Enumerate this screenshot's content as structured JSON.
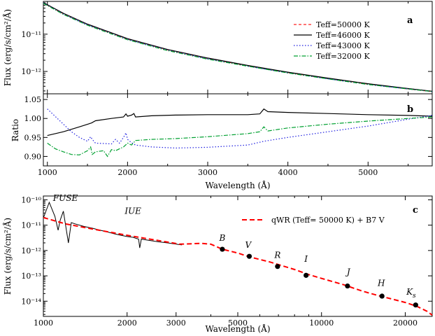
{
  "chart_data": [
    {
      "panel": "a",
      "type": "line",
      "xlabel": "",
      "ylabel": "Flux (erg/s/cm²/Å)",
      "xlim": [
        950,
        5800
      ],
      "ylim_log10": [
        -12.6,
        -10.12
      ],
      "y_scale": "log",
      "yticks": [
        {
          "value": -11,
          "label": "10⁻¹¹"
        },
        {
          "value": -12,
          "label": "10⁻¹²"
        }
      ],
      "legend": {
        "placement": "top-right",
        "entries": [
          "Teff=50000 K",
          "Teff=46000 K",
          "Teff=43000 K",
          "Teff=32000 K"
        ]
      },
      "series": [
        {
          "name": "Teff=50000 K",
          "color": "#ff2020",
          "dash": "4,3",
          "x": [
            950,
            1200,
            1500,
            2000,
            2500,
            3000,
            3500,
            4000,
            4500,
            5000,
            5500,
            5800
          ],
          "log10y": [
            -10.16,
            -10.45,
            -10.74,
            -11.13,
            -11.42,
            -11.65,
            -11.85,
            -12.03,
            -12.19,
            -12.34,
            -12.47,
            -12.54
          ]
        },
        {
          "name": "Teff=46000 K",
          "color": "#000000",
          "dash": "",
          "x": [
            950,
            1200,
            1500,
            2000,
            2500,
            3000,
            3500,
            4000,
            4500,
            5000,
            5500,
            5800
          ],
          "log10y": [
            -10.15,
            -10.44,
            -10.73,
            -11.12,
            -11.41,
            -11.64,
            -11.84,
            -12.02,
            -12.18,
            -12.33,
            -12.46,
            -12.53
          ]
        },
        {
          "name": "Teff=43000 K",
          "color": "#2020e0",
          "dash": "1.5,2.5",
          "x": [
            950,
            1200,
            1500,
            2000,
            2500,
            3000,
            3500,
            4000,
            4500,
            5000,
            5500,
            5800
          ],
          "log10y": [
            -10.16,
            -10.46,
            -10.75,
            -11.14,
            -11.43,
            -11.66,
            -11.86,
            -12.04,
            -12.2,
            -12.35,
            -12.47,
            -12.54
          ]
        },
        {
          "name": "Teff=32000 K",
          "color": "#00a030",
          "dash": "6,2,1.5,2",
          "x": [
            950,
            1200,
            1500,
            2000,
            2500,
            3000,
            3500,
            4000,
            4500,
            5000,
            5500,
            5800
          ],
          "log10y": [
            -10.17,
            -10.47,
            -10.76,
            -11.15,
            -11.44,
            -11.67,
            -11.86,
            -12.04,
            -12.2,
            -12.35,
            -12.47,
            -12.54
          ]
        }
      ],
      "annotation": "a"
    },
    {
      "panel": "b",
      "type": "line",
      "xlabel": "Wavelength (Å)",
      "ylabel": "Ratio",
      "xlim": [
        950,
        5800
      ],
      "ylim": [
        0.875,
        1.065
      ],
      "xticks": [
        1000,
        2000,
        3000,
        4000,
        5000
      ],
      "yticks": [
        {
          "value": 0.9,
          "label": "0.90"
        },
        {
          "value": 0.95,
          "label": "0.95"
        },
        {
          "value": 1.0,
          "label": "1.00"
        },
        {
          "value": 1.05,
          "label": "1.05"
        }
      ],
      "series": [
        {
          "name": "",
          "color": "#000000",
          "dash": "",
          "x": [
            1000,
            1200,
            1400,
            1550,
            1600,
            1800,
            1950,
            1980,
            2000,
            2050,
            2080,
            2100,
            2300,
            2600,
            3000,
            3500,
            3650,
            3700,
            3750,
            4000,
            4500,
            5000,
            5500,
            5800
          ],
          "y": [
            0.955,
            0.965,
            0.978,
            0.988,
            0.994,
            1.0,
            1.004,
            1.012,
            1.006,
            1.009,
            1.013,
            1.004,
            1.007,
            1.009,
            1.01,
            1.01,
            1.012,
            1.025,
            1.018,
            1.016,
            1.013,
            1.01,
            1.008,
            1.006
          ]
        },
        {
          "name": "",
          "color": "#2020e0",
          "dash": "1.5,2.5",
          "x": [
            1000,
            1100,
            1200,
            1300,
            1400,
            1500,
            1540,
            1560,
            1600,
            1700,
            1800,
            1850,
            1900,
            1950,
            1980,
            2000,
            2050,
            2100,
            2300,
            2600,
            3000,
            3500,
            3700,
            4000,
            4500,
            5000,
            5500,
            5800
          ],
          "y": [
            1.025,
            1.005,
            0.985,
            0.965,
            0.95,
            0.94,
            0.952,
            0.945,
            0.935,
            0.934,
            0.933,
            0.945,
            0.935,
            0.95,
            0.962,
            0.945,
            0.936,
            0.93,
            0.925,
            0.922,
            0.924,
            0.93,
            0.94,
            0.95,
            0.965,
            0.98,
            0.998,
            1.008
          ]
        },
        {
          "name": "",
          "color": "#00a030",
          "dash": "6,2,1.5,2",
          "x": [
            1000,
            1100,
            1200,
            1300,
            1400,
            1500,
            1540,
            1560,
            1600,
            1700,
            1750,
            1800,
            1850,
            1900,
            1950,
            2000,
            2050,
            2100,
            2300,
            2600,
            3000,
            3500,
            3650,
            3700,
            3750,
            4000,
            4500,
            5000,
            5500,
            5800
          ],
          "y": [
            0.935,
            0.92,
            0.912,
            0.905,
            0.904,
            0.915,
            0.925,
            0.905,
            0.912,
            0.915,
            0.9,
            0.918,
            0.915,
            0.92,
            0.925,
            0.935,
            0.93,
            0.942,
            0.945,
            0.947,
            0.952,
            0.96,
            0.965,
            0.978,
            0.967,
            0.975,
            0.985,
            0.993,
            1.0,
            1.004
          ]
        }
      ],
      "annotation": "b"
    },
    {
      "panel": "c",
      "type": "line",
      "xlabel": "Wavelength (Å)",
      "ylabel": "Flux (erg/s/cm²/Å)",
      "x_scale": "log",
      "y_scale": "log",
      "xlim": [
        1000,
        25000
      ],
      "ylim_log10": [
        -14.6,
        -9.85
      ],
      "xticks": [
        {
          "value": 1000,
          "label": "1000"
        },
        {
          "value": 2000,
          "label": "2000"
        },
        {
          "value": 3000,
          "label": "3000"
        },
        {
          "value": 5000,
          "label": "5000"
        },
        {
          "value": 10000,
          "label": "10000"
        },
        {
          "value": 20000,
          "label": "20000"
        }
      ],
      "yticks": [
        {
          "value": -10,
          "label": "10⁻¹⁰"
        },
        {
          "value": -11,
          "label": "10⁻¹¹"
        },
        {
          "value": -12,
          "label": "10⁻¹²"
        },
        {
          "value": -13,
          "label": "10⁻¹³"
        },
        {
          "value": -14,
          "label": "10⁻¹⁴"
        }
      ],
      "legend": {
        "placement": "top-right",
        "entries": [
          "qWR (Teff= 50000 K) + B7 V"
        ]
      },
      "model": {
        "name": "qWR (Teff= 50000 K) + B7 V",
        "color": "#ff0000",
        "x": [
          1000,
          1200,
          1500,
          2000,
          2500,
          3100,
          3700,
          4000,
          4400,
          5000,
          5500,
          6500,
          8000,
          9000,
          10000,
          12000,
          14000,
          16000,
          18000,
          20000,
          22000,
          24000,
          25000
        ],
        "log10y": [
          -10.7,
          -10.95,
          -11.15,
          -11.4,
          -11.58,
          -11.75,
          -11.72,
          -11.75,
          -11.95,
          -12.1,
          -12.25,
          -12.45,
          -12.75,
          -12.95,
          -13.1,
          -13.35,
          -13.6,
          -13.78,
          -13.92,
          -14.05,
          -14.2,
          -14.4,
          -14.55
        ]
      },
      "spectrum": {
        "color": "#000000",
        "x": [
          1000,
          1050,
          1100,
          1130,
          1150,
          1180,
          1200,
          1230,
          1260,
          1300,
          1400,
          1500,
          1600,
          1700,
          1800,
          1900,
          2000,
          2100,
          2200,
          2220,
          2250,
          2400,
          2600,
          2800,
          3000,
          3150
        ],
        "log10y": [
          -10.72,
          -10.1,
          -10.65,
          -11.2,
          -10.8,
          -10.45,
          -10.95,
          -11.7,
          -10.9,
          -10.95,
          -11.05,
          -11.12,
          -11.2,
          -11.27,
          -11.34,
          -11.4,
          -11.45,
          -11.48,
          -11.55,
          -11.9,
          -11.55,
          -11.6,
          -11.66,
          -11.7,
          -11.75,
          -11.78
        ]
      },
      "photometry": [
        {
          "band": "B",
          "x": 4400,
          "log10y": -11.95
        },
        {
          "band": "V",
          "x": 5500,
          "log10y": -12.23
        },
        {
          "band": "R",
          "x": 6950,
          "log10y": -12.63
        },
        {
          "band": "I",
          "x": 8800,
          "log10y": -12.98
        },
        {
          "band": "J",
          "x": 12400,
          "log10y": -13.4
        },
        {
          "band": "H",
          "x": 16500,
          "log10y": -13.8
        },
        {
          "band": "Ks",
          "x": 21800,
          "log10y": -14.15
        }
      ],
      "band_labels": [
        {
          "text": "FUSE",
          "x": 1200,
          "log10y": -10.05
        },
        {
          "text": "IUE",
          "x": 2100,
          "log10y": -10.55
        },
        {
          "text": "B",
          "x": 4400,
          "log10y": -11.62
        },
        {
          "text": "V",
          "x": 5450,
          "log10y": -11.9
        },
        {
          "text": "R",
          "x": 6950,
          "log10y": -12.3
        },
        {
          "text": "I",
          "x": 8800,
          "log10y": -12.45
        },
        {
          "text": "J",
          "x": 12500,
          "log10y": -12.95
        },
        {
          "text": "H",
          "x": 16400,
          "log10y": -13.4
        },
        {
          "text": "K",
          "sub": "s",
          "x": 21000,
          "log10y": -13.75
        }
      ],
      "annotation": "c"
    }
  ]
}
